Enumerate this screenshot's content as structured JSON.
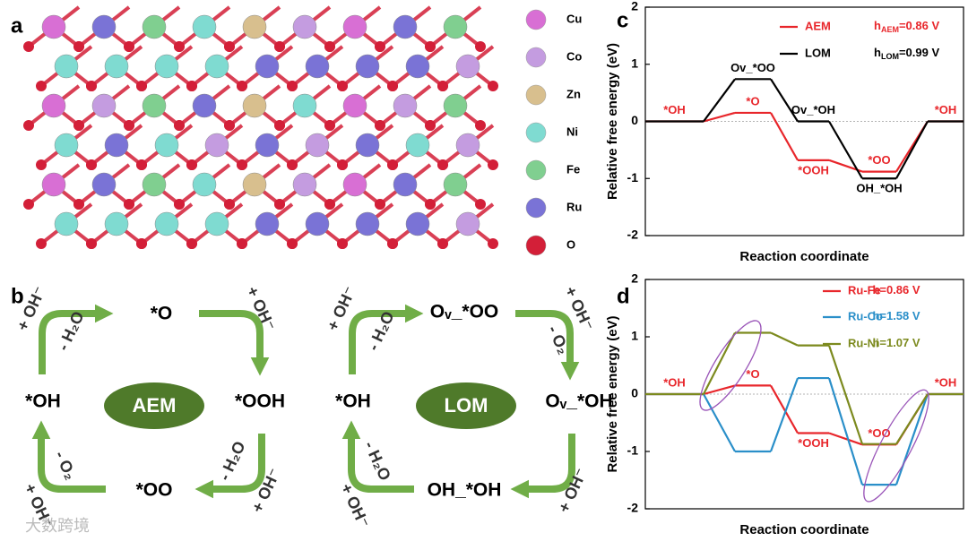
{
  "panel_labels": [
    "a",
    "b",
    "c",
    "d"
  ],
  "structure_legend": [
    {
      "label": "Cu",
      "color": "#d86fd4"
    },
    {
      "label": "Co",
      "color": "#c49ce0"
    },
    {
      "label": "Zn",
      "color": "#d8bf8e"
    },
    {
      "label": "Ni",
      "color": "#7fdbd1"
    },
    {
      "label": "Fe",
      "color": "#80cf90"
    },
    {
      "label": "Ru",
      "color": "#7a73d6"
    },
    {
      "label": "O",
      "color": "#d31f38"
    }
  ],
  "aem_cycle": {
    "center": "AEM",
    "states": [
      "*OH",
      "*O",
      "*OOH",
      "*OO"
    ],
    "arrows": [
      [
        "+ OH⁻",
        "- H₂O"
      ],
      [
        "+ OH⁻"
      ],
      [
        "- H₂O",
        "+ OH⁻"
      ],
      [
        "- O₂",
        "+ OH⁻"
      ]
    ]
  },
  "lom_cycle": {
    "center": "LOM",
    "states": [
      "*OH",
      "Oᵥ_*OO",
      "Oᵥ_*OH",
      "OH_*OH"
    ],
    "arrows": [
      [
        "+ OH⁻",
        "- H₂O"
      ],
      [
        "+ OH⁻",
        "- O₂"
      ],
      [
        "+ OH⁻"
      ],
      [
        "- H₂O",
        "+ OH⁻"
      ]
    ]
  },
  "watermark": "大数跨境",
  "chart_data": [
    {
      "type": "line",
      "x_label": "Reaction coordinate",
      "y_label": "Relative free energy (eV)",
      "ylim": [
        -2,
        2
      ],
      "yticks": [
        -2,
        -1,
        0,
        1,
        2
      ],
      "series": [
        {
          "name": "AEM",
          "color": "#e8262b",
          "values": [
            0,
            0.15,
            -0.68,
            -0.88,
            0
          ],
          "note": [
            "h",
            "AEM",
            "=0.86 V"
          ],
          "point_labels": [
            "*OH",
            "*O",
            "*OOH",
            "*OO",
            "*OH"
          ]
        },
        {
          "name": "LOM",
          "color": "#000000",
          "values": [
            0,
            0.74,
            0,
            -1.0,
            0
          ],
          "note": [
            "h",
            "LOM",
            "=0.99 V"
          ],
          "point_labels": [
            null,
            "Ov_*OO",
            "Ov_*OH",
            "OH_*OH",
            null
          ]
        }
      ]
    },
    {
      "type": "line",
      "x_label": "Reaction coordinate",
      "y_label": "Relative free energy (eV)",
      "ylim": [
        -2,
        2
      ],
      "yticks": [
        -2,
        -1,
        0,
        1,
        2
      ],
      "series": [
        {
          "name": "Ru-Fe",
          "color": "#e8262b",
          "values": [
            0,
            0.15,
            -0.68,
            -0.88,
            0
          ],
          "note": [
            "h=0.86 V"
          ],
          "point_labels": [
            "*OH",
            "*O",
            "*OOH",
            "*OO",
            "*OH"
          ]
        },
        {
          "name": "Ru-Co",
          "color": "#2a8fc9",
          "values": [
            0,
            -1.0,
            0.28,
            -1.58,
            0
          ],
          "note": [
            "h=1.58 V"
          ]
        },
        {
          "name": "Ru-Ni",
          "color": "#7c8a1e",
          "values": [
            0,
            1.07,
            0.85,
            -0.87,
            0
          ],
          "note": [
            "h=1.07 V"
          ]
        }
      ]
    }
  ]
}
